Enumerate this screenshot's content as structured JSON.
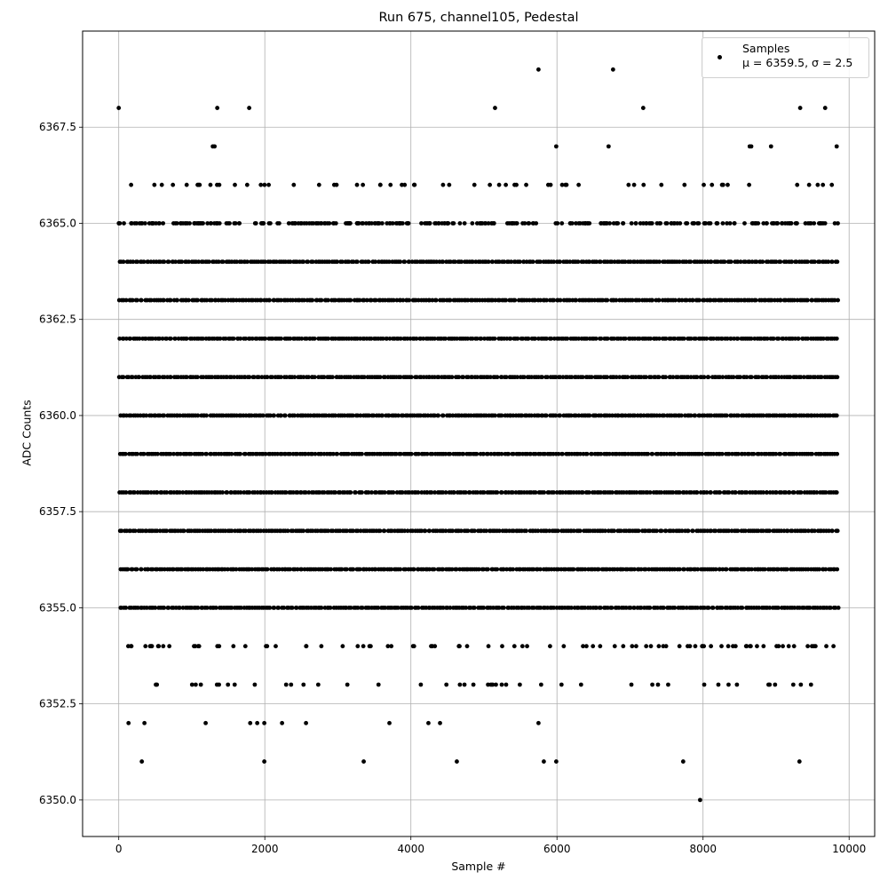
{
  "chart_data": {
    "type": "scatter",
    "title": "Run 675, channel105, Pedestal",
    "xlabel": "Sample #",
    "ylabel": "ADC Counts",
    "xlim": [
      -495,
      10350
    ],
    "ylim": [
      6349.05,
      6370.0
    ],
    "xticks": [
      0,
      2000,
      4000,
      6000,
      8000,
      10000
    ],
    "xtick_labels": [
      "0",
      "2000",
      "4000",
      "6000",
      "8000",
      "10000"
    ],
    "yticks": [
      6350.0,
      6352.5,
      6355.0,
      6357.5,
      6360.0,
      6362.5,
      6365.0,
      6367.5
    ],
    "ytick_labels": [
      "6350.0",
      "6352.5",
      "6355.0",
      "6357.5",
      "6360.0",
      "6362.5",
      "6365.0",
      "6367.5"
    ],
    "grid": true,
    "legend": {
      "placement": "top-right",
      "series": "Samples",
      "stats": "μ = 6359.5, σ = 2.5"
    },
    "marker_color": "#000000",
    "x_range_of_samples": [
      0,
      9860
    ],
    "levels": [
      {
        "y": 6353,
        "approx_count": 45
      },
      {
        "y": 6354,
        "approx_count": 90
      },
      {
        "y": 6355,
        "approx_count": 330
      },
      {
        "y": 6356,
        "approx_count": 600
      },
      {
        "y": 6357,
        "approx_count": 900
      },
      {
        "y": 6358,
        "approx_count": 1200
      },
      {
        "y": 6359,
        "approx_count": 1500
      },
      {
        "y": 6360,
        "approx_count": 1500
      },
      {
        "y": 6361,
        "approx_count": 1300
      },
      {
        "y": 6362,
        "approx_count": 1000
      },
      {
        "y": 6363,
        "approx_count": 700
      },
      {
        "y": 6364,
        "approx_count": 450
      },
      {
        "y": 6365,
        "approx_count": 300
      },
      {
        "y": 6366,
        "approx_count": 60
      }
    ],
    "outliers": [
      {
        "x": 7960,
        "y": 6350
      },
      {
        "x": 316,
        "y": 6351
      },
      {
        "x": 1993,
        "y": 6351
      },
      {
        "x": 3354,
        "y": 6351
      },
      {
        "x": 4629,
        "y": 6351
      },
      {
        "x": 5820,
        "y": 6351
      },
      {
        "x": 5990,
        "y": 6351
      },
      {
        "x": 7728,
        "y": 6351
      },
      {
        "x": 9320,
        "y": 6351
      },
      {
        "x": 134,
        "y": 6352
      },
      {
        "x": 352,
        "y": 6352
      },
      {
        "x": 1190,
        "y": 6352
      },
      {
        "x": 1800,
        "y": 6352
      },
      {
        "x": 1896,
        "y": 6352
      },
      {
        "x": 1993,
        "y": 6352
      },
      {
        "x": 2236,
        "y": 6352
      },
      {
        "x": 2564,
        "y": 6352
      },
      {
        "x": 3706,
        "y": 6352
      },
      {
        "x": 4240,
        "y": 6352
      },
      {
        "x": 4399,
        "y": 6352
      },
      {
        "x": 5747,
        "y": 6352
      },
      {
        "x": 1288,
        "y": 6367
      },
      {
        "x": 1312,
        "y": 6367
      },
      {
        "x": 5990,
        "y": 6367
      },
      {
        "x": 6707,
        "y": 6367
      },
      {
        "x": 8639,
        "y": 6367
      },
      {
        "x": 8660,
        "y": 6367
      },
      {
        "x": 8931,
        "y": 6367
      },
      {
        "x": 9830,
        "y": 6367
      },
      {
        "x": 0,
        "y": 6368
      },
      {
        "x": 1349,
        "y": 6368
      },
      {
        "x": 1786,
        "y": 6368
      },
      {
        "x": 5152,
        "y": 6368
      },
      {
        "x": 7181,
        "y": 6368
      },
      {
        "x": 9330,
        "y": 6368
      },
      {
        "x": 9672,
        "y": 6368
      },
      {
        "x": 5747,
        "y": 6369
      },
      {
        "x": 6768,
        "y": 6369
      }
    ]
  }
}
